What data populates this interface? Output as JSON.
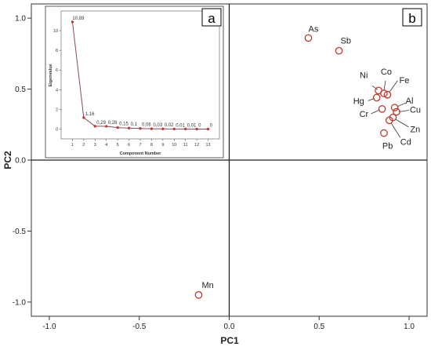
{
  "panels": {
    "main_letter": "b",
    "inset_letter": "a"
  },
  "chart_data": [
    {
      "type": "scatter",
      "title": "",
      "xlabel": "PC1",
      "ylabel": "PC2",
      "xlim": [
        -1.1,
        1.1
      ],
      "ylim": [
        -1.1,
        1.1
      ],
      "xticks": [
        "-1.0",
        "-0.5",
        "0.0",
        "0.5",
        "1.0"
      ],
      "yticks": [
        "1.0",
        "0.5",
        "0.0",
        "-0.5",
        "-1.0"
      ],
      "grid": false,
      "reference_lines": {
        "x": 0,
        "y": 0
      },
      "marker_color": "#c0392b",
      "points": [
        {
          "label": "As",
          "x": 0.44,
          "y": 0.86
        },
        {
          "label": "Sb",
          "x": 0.61,
          "y": 0.77
        },
        {
          "label": "Ni",
          "x": 0.83,
          "y": 0.49
        },
        {
          "label": "Co",
          "x": 0.86,
          "y": 0.47
        },
        {
          "label": "Fe",
          "x": 0.88,
          "y": 0.46
        },
        {
          "label": "Hg",
          "x": 0.82,
          "y": 0.44
        },
        {
          "label": "Al",
          "x": 0.92,
          "y": 0.37
        },
        {
          "label": "Cr",
          "x": 0.85,
          "y": 0.36
        },
        {
          "label": "Cu",
          "x": 0.93,
          "y": 0.34
        },
        {
          "label": "Zn",
          "x": 0.91,
          "y": 0.3
        },
        {
          "label": "Cd",
          "x": 0.89,
          "y": 0.28
        },
        {
          "label": "Pb",
          "x": 0.86,
          "y": 0.19
        },
        {
          "label": "Mn",
          "x": -0.17,
          "y": -0.95
        }
      ]
    },
    {
      "type": "line",
      "title": "",
      "xlabel": "Component Number",
      "ylabel": "Eigenvalue",
      "xlim": [
        0,
        14
      ],
      "ylim": [
        -1,
        12
      ],
      "yticks": [
        0,
        2,
        4,
        6,
        8,
        10
      ],
      "categories": [
        "1",
        "2",
        "3",
        "4",
        "5",
        "6",
        "7",
        "8",
        "9",
        "10",
        "11",
        "12",
        "13"
      ],
      "values": [
        10.89,
        1.16,
        0.29,
        0.28,
        0.15,
        0.1,
        0.06,
        0.03,
        0.02,
        0.01,
        0.01,
        0,
        0
      ],
      "value_labels": [
        "10,89",
        "1,16",
        "0,29",
        "0,28",
        "0,15",
        "0,1",
        "0,06",
        "0,03",
        "0,02",
        "0,01",
        "0,01",
        "0",
        "0"
      ],
      "line_color": "#8b4a5a",
      "marker_color": "#c0392b"
    }
  ]
}
